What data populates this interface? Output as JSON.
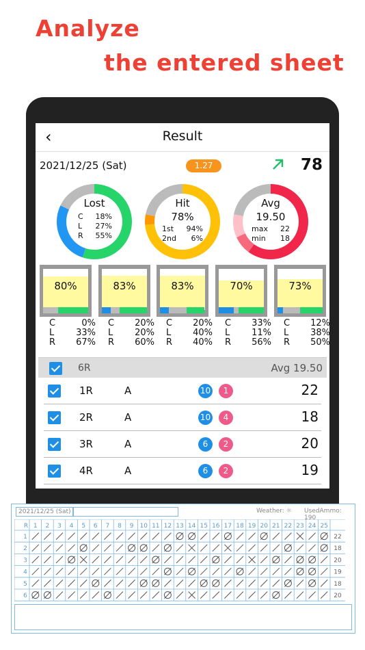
{
  "headline": {
    "line1": "Analyze",
    "line2": "the entered sheet"
  },
  "navbar": {
    "back_icon": "‹",
    "title": "Result"
  },
  "summary": {
    "date": "2021/12/25 (Sat)",
    "badge": "1.27",
    "trend_icon": "arrow-up-right-icon",
    "score": "78"
  },
  "donuts": [
    {
      "title": "Lost",
      "rows": [
        [
          "C",
          "18%"
        ],
        [
          "L",
          "27%"
        ],
        [
          "R",
          "55%"
        ]
      ],
      "segments": [
        {
          "frac": 0.55,
          "color": "#27d46a"
        },
        {
          "frac": 0.27,
          "color": "#2196f3"
        },
        {
          "frac": 0.18,
          "color": "#bbbbbb"
        }
      ]
    },
    {
      "title": "Hit",
      "value": "78%",
      "rows": [
        [
          "1st",
          "94%"
        ],
        [
          "2nd",
          "6%"
        ]
      ],
      "segments": [
        {
          "frac": 0.735,
          "color": "#ffc107"
        },
        {
          "frac": 0.045,
          "color": "#ff9800"
        },
        {
          "frac": 0.22,
          "color": "#bbbbbb"
        }
      ]
    },
    {
      "title": "Avg",
      "value": "19.50",
      "rows": [
        [
          "max",
          "22"
        ],
        [
          "min",
          "18"
        ]
      ],
      "segments": [
        {
          "frac": 0.6,
          "color": "#f0264b"
        },
        {
          "frac": 0.08,
          "color": "#f76a7e"
        },
        {
          "frac": 0.1,
          "color": "#ffc0c8"
        },
        {
          "frac": 0.22,
          "color": "#bbbbbb"
        }
      ]
    }
  ],
  "bars": [
    {
      "pct": "80%",
      "fill": 0.8,
      "c": "0%",
      "l": "33%",
      "r": "67%",
      "cf": 0.0,
      "lf": 0.33,
      "rf": 0.67
    },
    {
      "pct": "83%",
      "fill": 0.83,
      "c": "20%",
      "l": "20%",
      "r": "60%",
      "cf": 0.2,
      "lf": 0.2,
      "rf": 0.6
    },
    {
      "pct": "83%",
      "fill": 0.83,
      "c": "20%",
      "l": "40%",
      "r": "40%",
      "cf": 0.2,
      "lf": 0.4,
      "rf": 0.4
    },
    {
      "pct": "70%",
      "fill": 0.7,
      "c": "33%",
      "l": "11%",
      "r": "56%",
      "cf": 0.33,
      "lf": 0.11,
      "rf": 0.56
    },
    {
      "pct": "73%",
      "fill": 0.73,
      "c": "12%",
      "l": "38%",
      "r": "50%",
      "cf": 0.12,
      "lf": 0.38,
      "rf": 0.5
    }
  ],
  "stat_keys": [
    "C",
    "L",
    "R"
  ],
  "list": {
    "header": {
      "name": "6R",
      "avg": "Avg 19.50"
    },
    "rows": [
      {
        "name": "1R",
        "grade": "A",
        "blue": "10",
        "pink": "1",
        "score": "22"
      },
      {
        "name": "2R",
        "grade": "A",
        "blue": "10",
        "pink": "4",
        "score": "18"
      },
      {
        "name": "3R",
        "grade": "A",
        "blue": "6",
        "pink": "2",
        "score": "20"
      },
      {
        "name": "4R",
        "grade": "A",
        "blue": "6",
        "pink": "2",
        "score": "19"
      }
    ]
  },
  "sheet": {
    "date": "2021/12/25 (Sat)",
    "weather": "Weather: ☼",
    "ammo": "UsedAmmo: 190",
    "header_r": "R",
    "columns": [
      "1",
      "2",
      "3",
      "4",
      "5",
      "6",
      "7",
      "8",
      "9",
      "10",
      "11",
      "12",
      "13",
      "14",
      "15",
      "16",
      "17",
      "18",
      "19",
      "20",
      "21",
      "22",
      "23",
      "24",
      "25"
    ],
    "rows": [
      {
        "n": "1",
        "marks": "////////////oo//o//o//x/o/////",
        "total": "22"
      },
      {
        "n": "2",
        "marks": "////o///oo/o/x//x////o//oo/",
        "total": "18"
      },
      {
        "n": "3",
        "marks": "///ox/////o////o//x/o/oo/ox",
        "total": "20"
      },
      {
        "n": "4",
        "marks": "///////////o/o///o////oo/",
        "total": "19"
      },
      {
        "n": "5",
        "marks": "/////o///oo///oo/////o/o/",
        "total": "18"
      },
      {
        "n": "6",
        "marks": "oo////o////o/x//////o///",
        "total": "20"
      }
    ]
  }
}
